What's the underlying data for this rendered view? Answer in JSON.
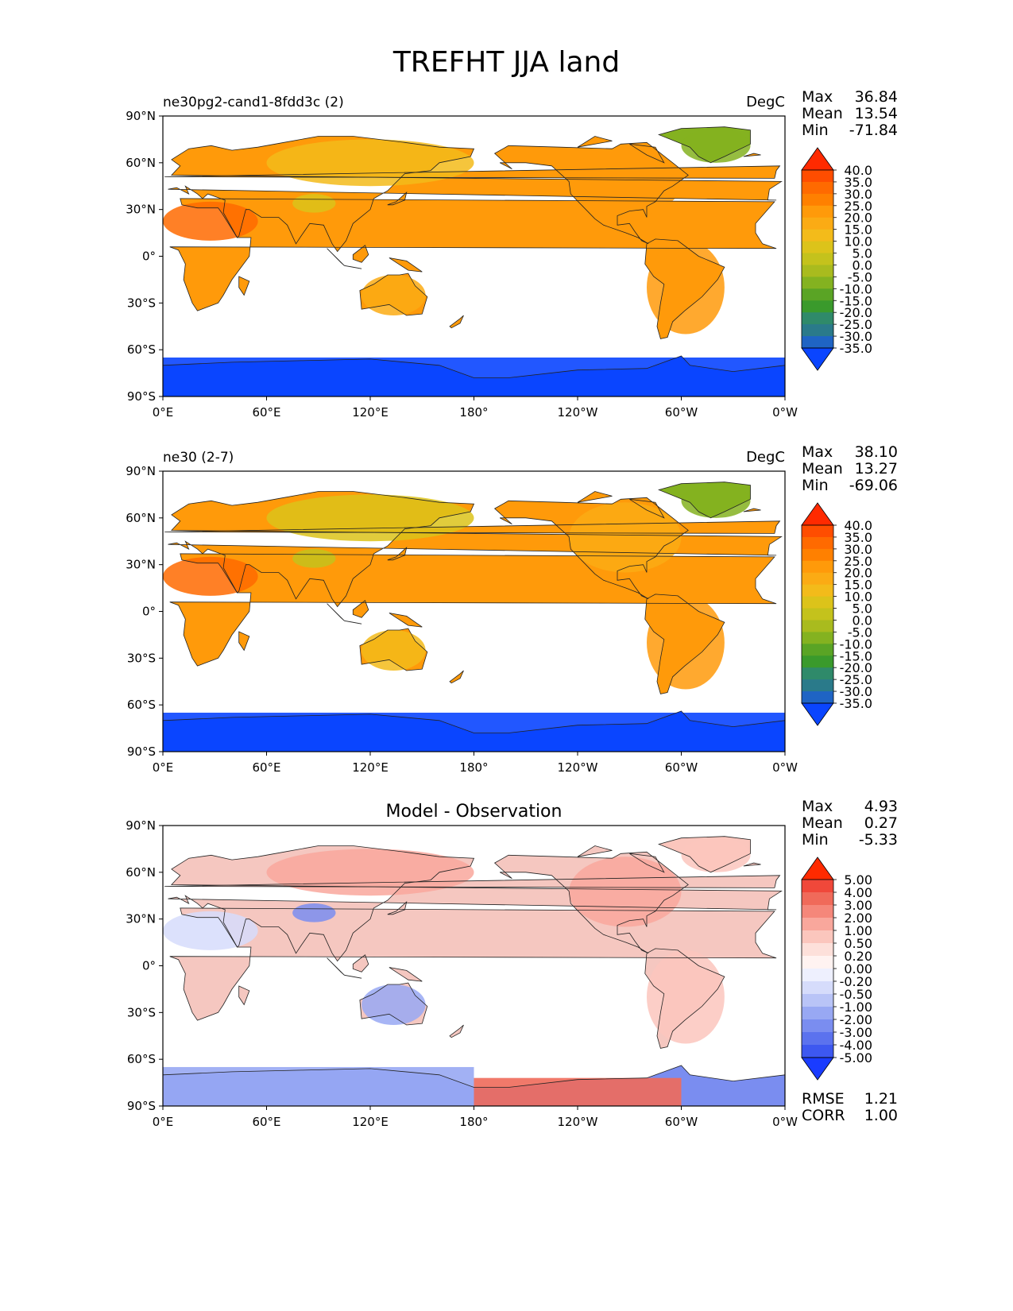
{
  "figure": {
    "title": "TREFHT JJA land"
  },
  "chart_data": [
    {
      "type": "heatmap",
      "title": "ne30pg2-cand1-8fdd3c (2)",
      "units": "DegC",
      "stats": {
        "max_label": "Max",
        "max": "36.84",
        "mean_label": "Mean",
        "mean": "13.54",
        "min_label": "Min",
        "min": "-71.84"
      },
      "x_ticks": [
        "0°E",
        "60°E",
        "120°E",
        "180°",
        "120°W",
        "60°W",
        "0°W"
      ],
      "y_ticks": [
        "90°N",
        "60°N",
        "30°N",
        "0°",
        "30°S",
        "60°S",
        "90°S"
      ],
      "xlim": [
        0,
        360
      ],
      "ylim": [
        -90,
        90
      ],
      "colorbar": {
        "levels": [
          "40.0",
          "35.0",
          "30.0",
          "25.0",
          "20.0",
          "15.0",
          "10.0",
          "5.0",
          "0.0",
          "-5.0",
          "-10.0",
          "-15.0",
          "-20.0",
          "-25.0",
          "-30.0",
          "-35.0"
        ],
        "colors": [
          "#ff2a00",
          "#ff4d00",
          "#ff6a00",
          "#ff8000",
          "#ff9a0a",
          "#fbab14",
          "#f3bb1a",
          "#dcc31a",
          "#c4c21c",
          "#a9bb1e",
          "#84b220",
          "#5aa425",
          "#3a9a2c",
          "#2f8a6a",
          "#2a7a8a",
          "#1f64c4",
          "#0a45ff"
        ]
      },
      "regions": [
        {
          "name": "siberia",
          "lon": [
            60,
            180
          ],
          "lat": [
            45,
            75
          ],
          "value": 10
        },
        {
          "name": "north-america",
          "lon": [
            235,
            300
          ],
          "lat": [
            25,
            70
          ],
          "value": 20
        },
        {
          "name": "greenland",
          "lon": [
            300,
            340
          ],
          "lat": [
            60,
            82
          ],
          "value": -10
        },
        {
          "name": "sahara",
          "lon": [
            0,
            55
          ],
          "lat": [
            10,
            35
          ],
          "value": 32
        },
        {
          "name": "tibet",
          "lon": [
            75,
            100
          ],
          "lat": [
            28,
            40
          ],
          "value": 5
        },
        {
          "name": "south-america",
          "lon": [
            280,
            325
          ],
          "lat": [
            -50,
            10
          ],
          "value": 22
        },
        {
          "name": "australia",
          "lon": [
            115,
            152
          ],
          "lat": [
            -38,
            -12
          ],
          "value": 15
        },
        {
          "name": "antarctica",
          "lon": [
            0,
            360
          ],
          "lat": [
            -90,
            -65
          ],
          "value": -40
        }
      ]
    },
    {
      "type": "heatmap",
      "title": "ne30 (2-7)",
      "units": "DegC",
      "stats": {
        "max_label": "Max",
        "max": "38.10",
        "mean_label": "Mean",
        "mean": "13.27",
        "min_label": "Min",
        "min": "-69.06"
      },
      "x_ticks": [
        "0°E",
        "60°E",
        "120°E",
        "180°",
        "120°W",
        "60°W",
        "0°W"
      ],
      "y_ticks": [
        "90°N",
        "60°N",
        "30°N",
        "0°",
        "30°S",
        "60°S",
        "90°S"
      ],
      "xlim": [
        0,
        360
      ],
      "ylim": [
        -90,
        90
      ],
      "colorbar": {
        "levels": [
          "40.0",
          "35.0",
          "30.0",
          "25.0",
          "20.0",
          "15.0",
          "10.0",
          "5.0",
          "0.0",
          "-5.0",
          "-10.0",
          "-15.0",
          "-20.0",
          "-25.0",
          "-30.0",
          "-35.0"
        ],
        "colors": [
          "#ff2a00",
          "#ff4d00",
          "#ff6a00",
          "#ff8000",
          "#ff9a0a",
          "#fbab14",
          "#f3bb1a",
          "#dcc31a",
          "#c4c21c",
          "#a9bb1e",
          "#84b220",
          "#5aa425",
          "#3a9a2c",
          "#2f8a6a",
          "#2a7a8a",
          "#1f64c4",
          "#0a45ff"
        ]
      },
      "regions": [
        {
          "name": "siberia",
          "lon": [
            60,
            180
          ],
          "lat": [
            45,
            75
          ],
          "value": 8
        },
        {
          "name": "north-america",
          "lon": [
            235,
            300
          ],
          "lat": [
            25,
            70
          ],
          "value": 18
        },
        {
          "name": "greenland",
          "lon": [
            300,
            340
          ],
          "lat": [
            60,
            82
          ],
          "value": -10
        },
        {
          "name": "sahara",
          "lon": [
            0,
            55
          ],
          "lat": [
            10,
            35
          ],
          "value": 32
        },
        {
          "name": "tibet",
          "lon": [
            75,
            100
          ],
          "lat": [
            28,
            40
          ],
          "value": 3
        },
        {
          "name": "south-america",
          "lon": [
            280,
            325
          ],
          "lat": [
            -50,
            10
          ],
          "value": 22
        },
        {
          "name": "australia",
          "lon": [
            115,
            152
          ],
          "lat": [
            -38,
            -12
          ],
          "value": 14
        },
        {
          "name": "antarctica",
          "lon": [
            0,
            360
          ],
          "lat": [
            -90,
            -65
          ],
          "value": -40
        }
      ]
    },
    {
      "type": "heatmap",
      "title": "Model - Observation",
      "units": "",
      "stats": {
        "max_label": "Max",
        "max": "4.93",
        "mean_label": "Mean",
        "mean": "0.27",
        "min_label": "Min",
        "min": "-5.33"
      },
      "metrics": {
        "rmse_label": "RMSE",
        "rmse": "1.21",
        "corr_label": "CORR",
        "corr": "1.00"
      },
      "x_ticks": [
        "0°E",
        "60°E",
        "120°E",
        "180°",
        "120°W",
        "60°W",
        "0°W"
      ],
      "y_ticks": [
        "90°N",
        "60°N",
        "30°N",
        "0°",
        "30°S",
        "60°S",
        "90°S"
      ],
      "xlim": [
        0,
        360
      ],
      "ylim": [
        -90,
        90
      ],
      "colorbar": {
        "levels": [
          "5.00",
          "4.00",
          "3.00",
          "2.00",
          "1.00",
          "0.50",
          "0.20",
          "0.00",
          "-0.20",
          "-0.50",
          "-1.00",
          "-2.00",
          "-3.00",
          "-4.00",
          "-5.00"
        ],
        "colors": [
          "#ff2a00",
          "#f0483a",
          "#f06a5a",
          "#f5877a",
          "#f9a79c",
          "#fbc6bd",
          "#fde0da",
          "#fff3f1",
          "#eef0fe",
          "#d6dcfb",
          "#b9c4f7",
          "#98a8f3",
          "#7a8df0",
          "#5b72ee",
          "#3d58f0",
          "#1a3cff"
        ]
      },
      "regions": [
        {
          "name": "siberia",
          "lon": [
            60,
            180
          ],
          "lat": [
            45,
            75
          ],
          "value": 1.5
        },
        {
          "name": "north-america",
          "lon": [
            235,
            300
          ],
          "lat": [
            25,
            70
          ],
          "value": 1.2
        },
        {
          "name": "greenland",
          "lon": [
            300,
            340
          ],
          "lat": [
            60,
            82
          ],
          "value": 0.5
        },
        {
          "name": "sahara",
          "lon": [
            0,
            55
          ],
          "lat": [
            10,
            35
          ],
          "value": -0.3
        },
        {
          "name": "tibet",
          "lon": [
            75,
            100
          ],
          "lat": [
            28,
            40
          ],
          "value": -2.5
        },
        {
          "name": "south-america",
          "lon": [
            280,
            325
          ],
          "lat": [
            -50,
            10
          ],
          "value": 0.8
        },
        {
          "name": "australia",
          "lon": [
            115,
            152
          ],
          "lat": [
            -38,
            -12
          ],
          "value": -1.2
        },
        {
          "name": "antarctica-east",
          "lon": [
            0,
            180
          ],
          "lat": [
            -90,
            -65
          ],
          "value": -2.0
        },
        {
          "name": "antarctica-west",
          "lon": [
            180,
            300
          ],
          "lat": [
            -90,
            -72
          ],
          "value": 3.0
        }
      ]
    }
  ]
}
